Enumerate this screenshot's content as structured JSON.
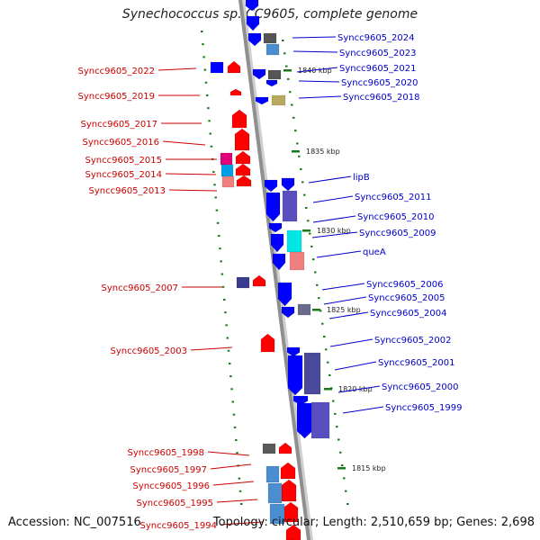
{
  "title": "Synechococcus sp. CC9605, complete genome",
  "footer": {
    "accession": "Accession: NC_007516",
    "topology": "Topology: circular; Length: 2,510,659 bp; Genes: 2,698"
  },
  "colors": {
    "red_label": "#cc0000",
    "blue_label": "#0000cc",
    "backbone": "#8f8f8f",
    "tick": "#1a7a1a",
    "gene_red": "#ff0000",
    "gene_blue": "#0000ff"
  },
  "scale_labels": [
    "1840 kbp",
    "1835 kbp",
    "1830 kbp",
    "1825 kbp",
    "1820 kbp",
    "1815 kbp"
  ],
  "genes_left": [
    "Syncc9605_2022",
    "Syncc9605_2019",
    "Syncc9605_2017",
    "Syncc9605_2016",
    "Syncc9605_2015",
    "Syncc9605_2014",
    "Syncc9605_2013",
    "Syncc9605_2007",
    "Syncc9605_2003",
    "Syncc9605_1998",
    "Syncc9605_1997",
    "Syncc9605_1996",
    "Syncc9605_1995",
    "Syncc9605_1994"
  ],
  "genes_right": [
    "Syncc9605_2024",
    "Syncc9605_2023",
    "Syncc9605_2021",
    "Syncc9605_2020",
    "Syncc9605_2018",
    "lipB",
    "Syncc9605_2011",
    "Syncc9605_2010",
    "Syncc9605_2009",
    "queA",
    "Syncc9605_2006",
    "Syncc9605_2005",
    "Syncc9605_2004",
    "Syncc9605_2002",
    "Syncc9605_2001",
    "Syncc9605_2000",
    "Syncc9605_1999"
  ]
}
